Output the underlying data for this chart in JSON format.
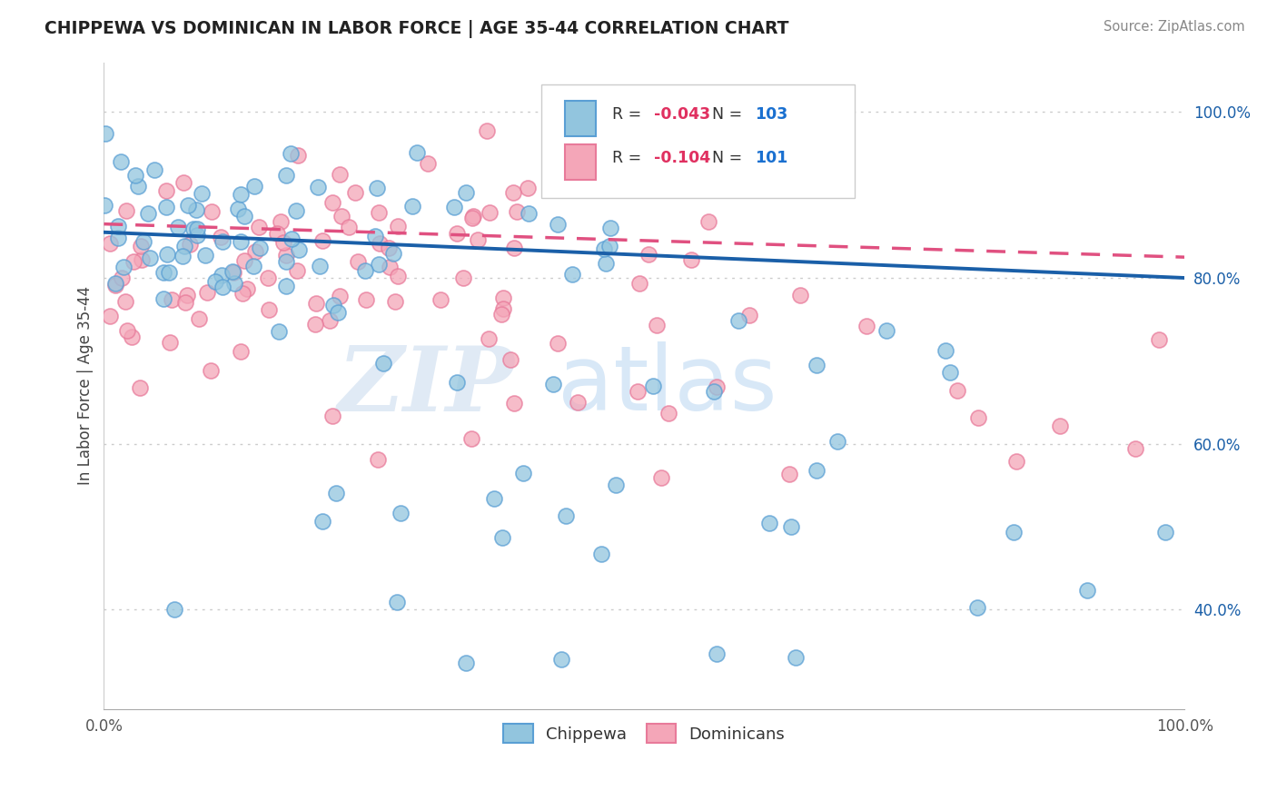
{
  "title": "CHIPPEWA VS DOMINICAN IN LABOR FORCE | AGE 35-44 CORRELATION CHART",
  "source": "Source: ZipAtlas.com",
  "ylabel": "In Labor Force | Age 35-44",
  "chippewa_R": -0.043,
  "chippewa_N": 103,
  "dominican_R": -0.104,
  "dominican_N": 101,
  "chippewa_color": "#92c5de",
  "dominican_color": "#f4a6b8",
  "chippewa_edge_color": "#5a9fd4",
  "dominican_edge_color": "#e87a9a",
  "chippewa_line_color": "#1a5fa8",
  "dominican_line_color": "#e05080",
  "watermark_zip": "ZIP",
  "watermark_atlas": "atlas",
  "ytick_labels": [
    "40.0%",
    "60.0%",
    "80.0%",
    "100.0%"
  ],
  "ytick_values": [
    0.4,
    0.6,
    0.8,
    1.0
  ],
  "xmin": 0.0,
  "xmax": 1.0,
  "ymin": 0.28,
  "ymax": 1.06,
  "legend_R_color": "#e03060",
  "legend_N_color": "#1a70d0",
  "legend_label_color": "#333333"
}
